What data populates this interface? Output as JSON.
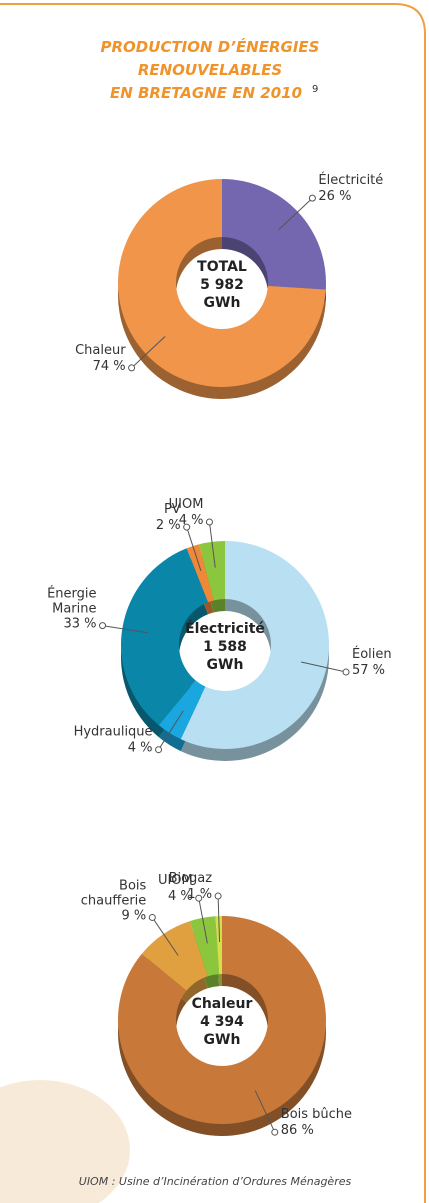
{
  "title": [
    "PRODUCTION D’ÉNERGIES",
    "RENOUVELABLES",
    "EN BRETAGNE EN 2010"
  ],
  "title_note": "9",
  "footnote": "UIOM : Usine d’Incinération d’Ordures Ménagères",
  "chart_data": [
    {
      "type": "pie",
      "center_label": [
        "TOTAL",
        "5 982",
        "GWh"
      ],
      "categories": [
        "Électricité",
        "Chaleur"
      ],
      "values": [
        26,
        74
      ],
      "value_labels": [
        "26 %",
        "74 %"
      ],
      "colors": [
        "#7467b0",
        "#f0954a"
      ]
    },
    {
      "type": "pie",
      "center_label": [
        "Électricité",
        "1 588",
        "GWh"
      ],
      "categories": [
        "Éolien",
        "Hydraulique",
        "Énergie Marine",
        "PV",
        "UIOM"
      ],
      "values": [
        57,
        4,
        33,
        2,
        4
      ],
      "value_labels": [
        "57 %",
        "4 %",
        "33 %",
        "2 %",
        "4 %"
      ],
      "colors": [
        "#b9e0f2",
        "#1aa7e0",
        "#0a86a8",
        "#f0883a",
        "#8cc63f"
      ]
    },
    {
      "type": "pie",
      "center_label": [
        "Chaleur",
        "4 394",
        "GWh"
      ],
      "categories": [
        "Bois bûche",
        "Bois chaufferie",
        "UIOM",
        "Biogaz"
      ],
      "values": [
        86,
        9,
        4,
        1
      ],
      "value_labels": [
        "86 %",
        "9 %",
        "4 %",
        "1 %"
      ],
      "colors": [
        "#c8793a",
        "#e0a040",
        "#8cc63f",
        "#d4e04a"
      ]
    }
  ]
}
